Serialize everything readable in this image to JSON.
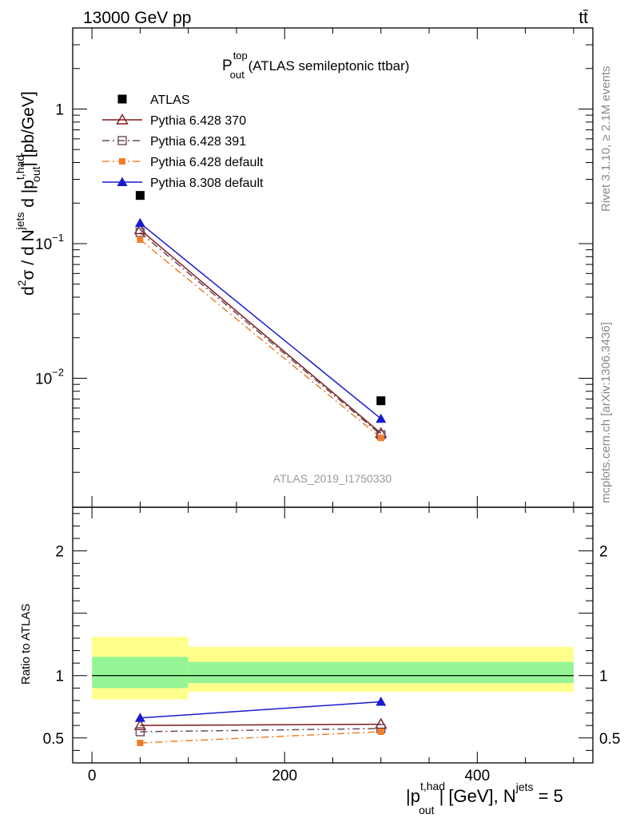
{
  "header": {
    "energy_label": "13000 GeV pp",
    "process_label": "tt̄"
  },
  "side_text": {
    "rivet": "Rivet 3.1.10, ≥ 2.1M events",
    "mcplots": "mcplots.cern.ch [arXiv:1306.3436]"
  },
  "chart_data": [
    {
      "type": "scatter",
      "panel": "main",
      "title": {
        "base": "P",
        "sup": "top",
        "sub": "out",
        "rest": " (ATLAS semileptonic ttbar)"
      },
      "analysis_label": "ATLAS_2019_I1750330",
      "ylabel": {
        "p1": "d",
        "p1_sup": "2",
        "p2": "σ / d N",
        "p2_sup": "jets",
        "p3": " d |p",
        "p3_sup": "t,had",
        "p3_sub": "out",
        "p4": "| [pb/GeV]"
      },
      "yscale": "log",
      "ylim": [
        0.0011,
        4.0
      ],
      "xlim": [
        -20,
        520
      ],
      "y_ticks": [
        {
          "value": 1,
          "base": "1",
          "exp": ""
        },
        {
          "value": 0.1,
          "base": "10",
          "exp": "−1"
        },
        {
          "value": 0.01,
          "base": "10",
          "exp": "−2"
        }
      ],
      "legend_position": "top-left",
      "series": [
        {
          "name": "ATLAS",
          "color": "#000000",
          "marker": "filled-square",
          "line": "none",
          "x": [
            50,
            300
          ],
          "y": [
            0.228,
            0.0068
          ]
        },
        {
          "name": "Pythia 6.428 370",
          "color": "#7f1a1a",
          "marker": "open-triangle",
          "line": "solid",
          "x": [
            50,
            300
          ],
          "y": [
            0.127,
            0.0039
          ]
        },
        {
          "name": "Pythia 6.428 391",
          "color": "#6b4a5a",
          "marker": "open-square",
          "line": "dashdot",
          "x": [
            50,
            300
          ],
          "y": [
            0.121,
            0.0038
          ]
        },
        {
          "name": "Pythia 6.428 default",
          "color": "#f07f2a",
          "marker": "filled-square-small",
          "line": "dashdot",
          "x": [
            50,
            300
          ],
          "y": [
            0.107,
            0.0036
          ]
        },
        {
          "name": "Pythia 8.308 default",
          "color": "#1a1acf",
          "marker": "filled-triangle",
          "line": "solid",
          "x": [
            50,
            300
          ],
          "y": [
            0.142,
            0.005
          ]
        }
      ]
    },
    {
      "type": "line",
      "panel": "ratio",
      "ylabel": "Ratio to ATLAS",
      "ylim": [
        0.3,
        2.35
      ],
      "xlim": [
        -20,
        520
      ],
      "y_ticks": [
        {
          "value": 2,
          "label": "2"
        },
        {
          "value": 1,
          "label": "1"
        },
        {
          "value": 0.5,
          "label": "0.5"
        }
      ],
      "x_ticks": [
        {
          "value": 0,
          "label": "0"
        },
        {
          "value": 200,
          "label": "200"
        },
        {
          "value": 400,
          "label": "400"
        }
      ],
      "xlabel": {
        "p1": "|p",
        "p1_sup": "t,had",
        "p1_sub": "out",
        "p2": "| [GeV], N",
        "p2_sup": "jets",
        "p3": " = 5"
      },
      "bands": [
        {
          "x": [
            0,
            100
          ],
          "yellow": [
            0.81,
            1.31
          ],
          "green": [
            0.9,
            1.15
          ]
        },
        {
          "x": [
            100,
            500
          ],
          "yellow": [
            0.87,
            1.23
          ],
          "green": [
            0.94,
            1.11
          ]
        }
      ],
      "series": [
        {
          "name": "Pythia 6.428 370",
          "color": "#7f1a1a",
          "marker": "open-triangle",
          "line": "solid",
          "x": [
            50,
            300
          ],
          "y": [
            0.6,
            0.61
          ]
        },
        {
          "name": "Pythia 6.428 391",
          "color": "#6b4a5a",
          "marker": "open-square",
          "line": "dashdot",
          "x": [
            50,
            300
          ],
          "y": [
            0.55,
            0.575
          ]
        },
        {
          "name": "Pythia 6.428 default",
          "color": "#f07f2a",
          "marker": "filled-square-small",
          "line": "dashdot",
          "x": [
            50,
            300
          ],
          "y": [
            0.46,
            0.55
          ]
        },
        {
          "name": "Pythia 8.308 default",
          "color": "#1a1acf",
          "marker": "filled-triangle",
          "line": "solid",
          "x": [
            50,
            300
          ],
          "y": [
            0.66,
            0.79
          ]
        }
      ]
    }
  ]
}
